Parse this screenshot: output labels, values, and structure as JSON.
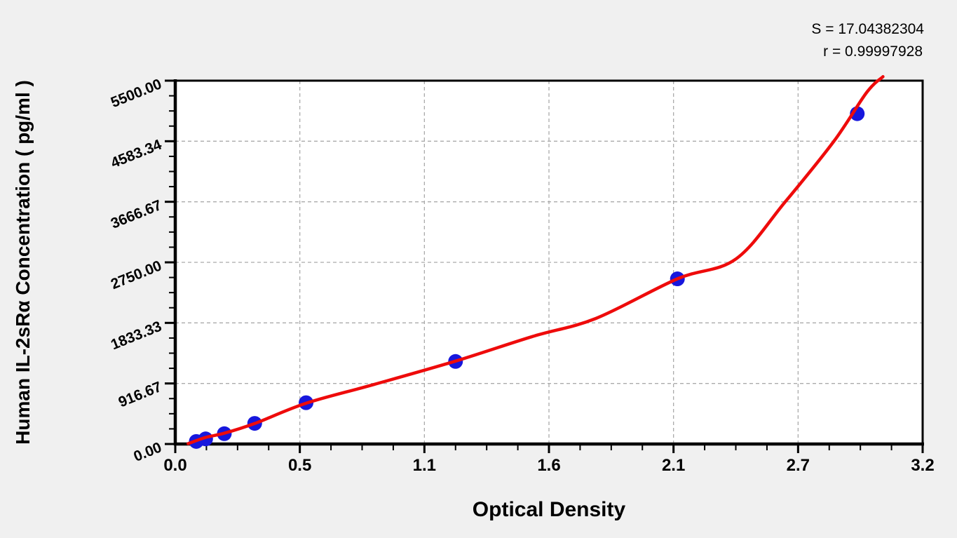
{
  "stats": {
    "s_line": "S = 17.04382304",
    "r_line": "r = 0.99997928"
  },
  "chart_data": {
    "type": "scatter",
    "title": "",
    "xlabel": "Optical Density",
    "ylabel": "Human IL-2sRα Concentration ( pg/ml )",
    "xlim": [
      0,
      3.2
    ],
    "ylim": [
      0,
      5500
    ],
    "x_ticks": {
      "values": [
        0,
        0.5333,
        1.0667,
        1.6,
        2.1333,
        2.6667,
        3.2
      ],
      "labels": [
        "0.0",
        "0.5",
        "1.1",
        "1.6",
        "2.1",
        "2.7",
        "3.2"
      ]
    },
    "y_ticks": {
      "values": [
        0,
        916.67,
        1833.33,
        2750.0,
        3666.67,
        4583.34,
        5500.0
      ],
      "labels": [
        "0.00",
        "916.67",
        "1833.33",
        "2750.00",
        "3666.67",
        "4583.34",
        "5500.00"
      ]
    },
    "minor_divisions": 4,
    "grid": {
      "show": true,
      "style": "dashed",
      "color": "#ababab",
      "position": "interior-major-ticks"
    },
    "legend": null,
    "colors": {
      "points": "#1717dd",
      "curve": "#ee0b0b",
      "plot_bg": "#ffffff",
      "frame": "#000000",
      "page_bg": "#f0f0f0"
    },
    "series": [
      {
        "name": "standard-points",
        "type": "scatter",
        "color": "#1717dd",
        "marker": "circle",
        "points": [
          [
            0.09,
            39.06
          ],
          [
            0.13,
            78.13
          ],
          [
            0.21,
            156.25
          ],
          [
            0.34,
            312.5
          ],
          [
            0.56,
            625
          ],
          [
            1.2,
            1250
          ],
          [
            2.15,
            2500
          ],
          [
            2.92,
            5000
          ]
        ]
      },
      {
        "name": "fitted-curve",
        "type": "line",
        "color": "#ee0b0b",
        "points": [
          [
            0.055,
            5
          ],
          [
            0.13,
            100
          ],
          [
            0.21,
            163
          ],
          [
            0.34,
            310
          ],
          [
            0.56,
            617
          ],
          [
            0.85,
            900
          ],
          [
            1.2,
            1255
          ],
          [
            1.53,
            1628
          ],
          [
            1.8,
            1900
          ],
          [
            2.15,
            2500
          ],
          [
            2.4,
            2800
          ],
          [
            2.61,
            3660
          ],
          [
            2.82,
            4583
          ],
          [
            2.96,
            5320
          ],
          [
            3.03,
            5560
          ]
        ]
      }
    ],
    "annotations": [
      "S = 17.04382304",
      "r = 0.99997928"
    ]
  }
}
